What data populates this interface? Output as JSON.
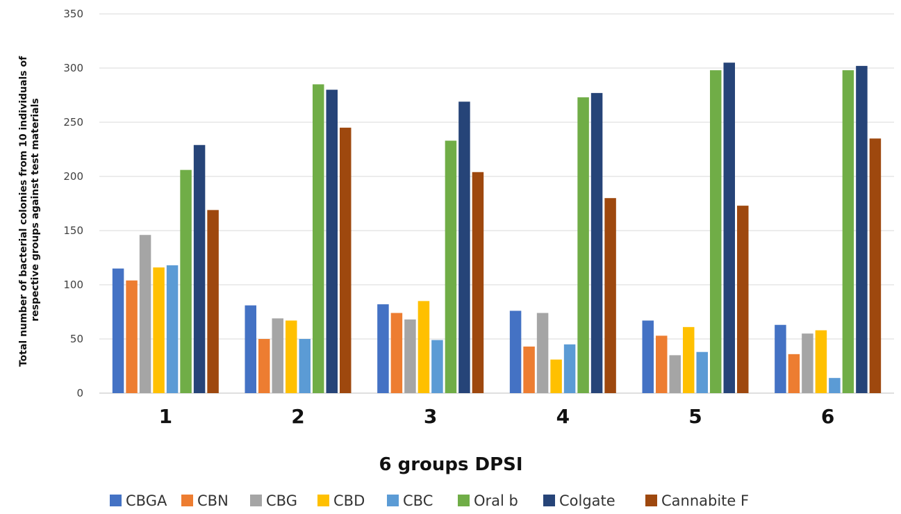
{
  "chart_data": {
    "type": "bar",
    "xlabel": "6 groups DPSI",
    "ylabel_lines": [
      "Total number of bacterial colonies from 10 individuals of",
      "respective groups against test materials"
    ],
    "categories": [
      "1",
      "2",
      "3",
      "4",
      "5",
      "6"
    ],
    "ylim": [
      0,
      350
    ],
    "yticks": [
      0,
      50,
      100,
      150,
      200,
      250,
      300,
      350
    ],
    "grid": true,
    "legend_position": "bottom",
    "series": [
      {
        "name": "CBGA",
        "color": "#4472c4",
        "values": [
          115,
          81,
          82,
          76,
          67,
          63
        ]
      },
      {
        "name": "CBN",
        "color": "#ed7d31",
        "values": [
          104,
          50,
          74,
          43,
          53,
          36
        ]
      },
      {
        "name": "CBG",
        "color": "#a5a5a5",
        "values": [
          146,
          69,
          68,
          74,
          35,
          55
        ]
      },
      {
        "name": "CBD",
        "color": "#ffc000",
        "values": [
          116,
          67,
          85,
          31,
          61,
          58
        ]
      },
      {
        "name": "CBC",
        "color": "#5b9bd5",
        "values": [
          118,
          50,
          49,
          45,
          38,
          14
        ]
      },
      {
        "name": "Oral b",
        "color": "#70ad47",
        "values": [
          206,
          285,
          233,
          273,
          298,
          298
        ]
      },
      {
        "name": "Colgate",
        "color": "#264478",
        "values": [
          229,
          280,
          269,
          277,
          305,
          302
        ]
      },
      {
        "name": "Cannabite F",
        "color": "#9e480e",
        "values": [
          169,
          245,
          204,
          180,
          173,
          235
        ]
      }
    ]
  }
}
